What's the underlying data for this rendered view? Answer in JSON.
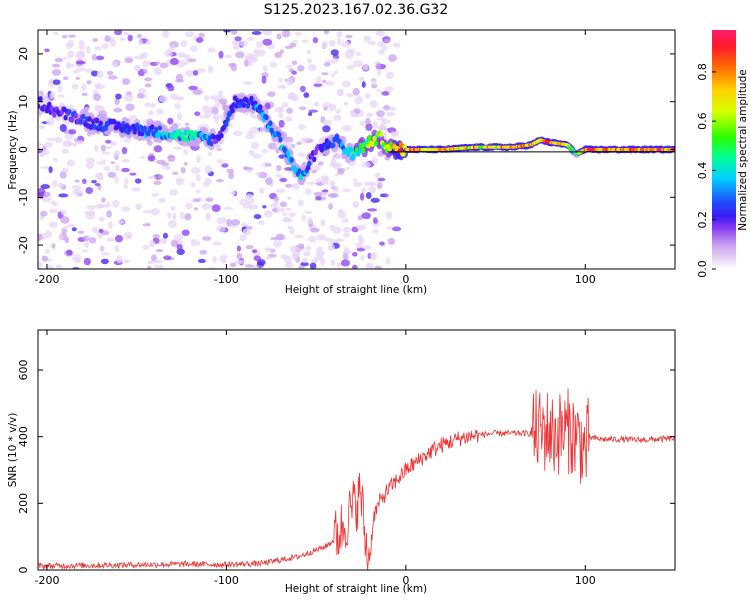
{
  "figure_title": "S125.2023.167.02.36.G32",
  "colors": {
    "snr_line": "#ee3333",
    "trace_line": "#000000",
    "colormap": [
      "#ffffff",
      "#e9d6f7",
      "#c9a2f0",
      "#8a3cf0",
      "#3b1cf5",
      "#1f4dff",
      "#00d0ff",
      "#00ff90",
      "#2aff00",
      "#d8ff00",
      "#ffd000",
      "#ff7000",
      "#ff1a2a",
      "#ff1a6e"
    ]
  },
  "chart_data": [
    {
      "type": "heatmap",
      "title": "S125.2023.167.02.36.G32",
      "xlabel": "Height of straight line (km)",
      "ylabel": "Frequency (Hz)",
      "xlim": [
        -205,
        150
      ],
      "ylim": [
        -25,
        25
      ],
      "xticks": [
        -200,
        -100,
        0,
        100
      ],
      "yticks": [
        -20,
        -10,
        0,
        10,
        20
      ],
      "grid": false,
      "description_free": true,
      "ridge": {
        "x": [
          -205,
          -195,
          -185,
          -175,
          -165,
          -155,
          -145,
          -135,
          -125,
          -115,
          -105,
          -95,
          -88,
          -82,
          -78,
          -74,
          -70,
          -66,
          -62,
          -58,
          -54,
          -50,
          -46,
          -42,
          -38,
          -34,
          -30,
          -26,
          -22,
          -18,
          -14,
          -10,
          -5,
          0,
          20,
          40,
          60,
          70,
          75,
          80,
          90,
          95,
          100,
          120,
          150
        ],
        "frequency": [
          10,
          8,
          7,
          5.5,
          5,
          4.5,
          4,
          3.5,
          3,
          2.5,
          2,
          10,
          10,
          9,
          6,
          4,
          2,
          -1,
          -4,
          -6,
          -3,
          -0.5,
          0.5,
          1.5,
          2,
          0,
          -1,
          0,
          1,
          2,
          2.5,
          0.5,
          0,
          0,
          0,
          0.5,
          0.5,
          1,
          2,
          1.5,
          1,
          -1,
          0,
          0,
          0
        ],
        "amplitude": [
          0.3,
          0.3,
          0.32,
          0.32,
          0.35,
          0.35,
          0.4,
          0.45,
          0.5,
          0.5,
          0.3,
          0.35,
          0.35,
          0.4,
          0.45,
          0.5,
          0.45,
          0.45,
          0.45,
          0.45,
          0.35,
          0.3,
          0.3,
          0.35,
          0.35,
          0.45,
          0.5,
          0.55,
          0.6,
          0.65,
          0.7,
          0.7,
          0.8,
          0.85,
          0.8,
          0.8,
          0.85,
          0.85,
          0.85,
          0.85,
          0.8,
          0.5,
          0.9,
          0.85,
          0.9
        ]
      },
      "reference_line": {
        "x_start": -10,
        "x_end": 150,
        "frequency": -0.5
      }
    },
    {
      "type": "colorbar",
      "label": "Normalized spectral amplitude",
      "ticks": [
        "0.0",
        "0.2",
        "0.4",
        "0.6",
        "0.8"
      ],
      "range": [
        0,
        0.97
      ]
    },
    {
      "type": "line",
      "xlabel": "Height of straight line (km)",
      "ylabel": "SNR (10 * v/v)",
      "xlim": [
        -205,
        150
      ],
      "ylim": [
        0,
        720
      ],
      "xticks": [
        -200,
        -100,
        0,
        100
      ],
      "yticks": [
        0,
        200,
        400,
        600
      ],
      "grid": false,
      "series": [
        {
          "x": [
            -205,
            -190,
            -175,
            -160,
            -145,
            -130,
            -120,
            -110,
            -100,
            -90,
            -80,
            -75,
            -70,
            -65,
            -60,
            -55,
            -50,
            -45,
            -40,
            -35,
            -30,
            -25,
            -22,
            -20,
            -18,
            -15,
            -10,
            -5,
            0,
            5,
            10,
            15,
            20,
            25,
            30,
            40,
            50,
            60,
            70,
            75,
            80,
            82,
            85,
            90,
            95,
            98,
            100,
            102,
            105,
            110,
            120,
            130,
            140,
            150
          ],
          "values": [
            12,
            13,
            14,
            15,
            16,
            17,
            18,
            17,
            16,
            18,
            20,
            25,
            30,
            35,
            40,
            50,
            60,
            70,
            90,
            130,
            180,
            230,
            60,
            40,
            160,
            200,
            240,
            270,
            300,
            320,
            340,
            360,
            375,
            385,
            395,
            405,
            410,
            410,
            410,
            415,
            420,
            400,
            410,
            420,
            400,
            380,
            350,
            400,
            395,
            392,
            392,
            390,
            392,
            395
          ]
        }
      ]
    }
  ]
}
